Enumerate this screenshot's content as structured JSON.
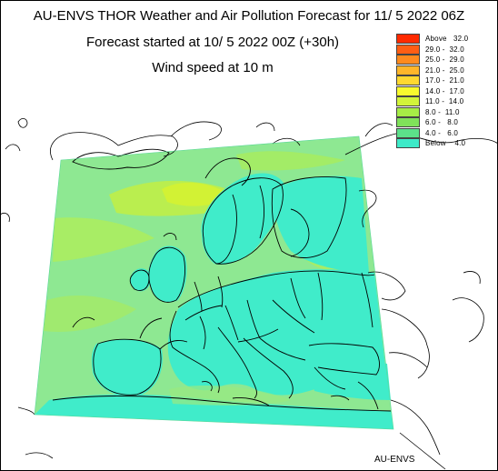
{
  "header": {
    "title": "AU-ENVS THOR Weather and Air Pollution Forecast for 11/ 5 2022  06Z",
    "subtitle": "Forecast started at 10/ 5 2022  00Z (+30h)",
    "variable": "Wind speed at 10 m"
  },
  "legend": [
    {
      "label": "Above   32.0",
      "color": "#ff2a00"
    },
    {
      "label": "29.0 -  32.0",
      "color": "#ff5e14"
    },
    {
      "label": "25.0 -  29.0",
      "color": "#ff8a1e"
    },
    {
      "label": "21.0 -  25.0",
      "color": "#ffb62a"
    },
    {
      "label": "17.0 -  21.0",
      "color": "#ffd830"
    },
    {
      "label": "14.0 -  17.0",
      "color": "#f8fa2e"
    },
    {
      "label": "11.0 -  14.0",
      "color": "#d2f43a"
    },
    {
      "label": "8.0 -  11.0",
      "color": "#a6ec46"
    },
    {
      "label": "6.0 -   8.0",
      "color": "#80e25a"
    },
    {
      "label": "4.0 -   6.0",
      "color": "#5ce08a"
    },
    {
      "label": "Below    4.0",
      "color": "#3eeac8"
    }
  ],
  "credit": "AU-ENVS",
  "colors": {
    "background": "#ffffff",
    "border": "#000000",
    "ocean_field": "#8ee892",
    "land_field": "#40ecca"
  }
}
